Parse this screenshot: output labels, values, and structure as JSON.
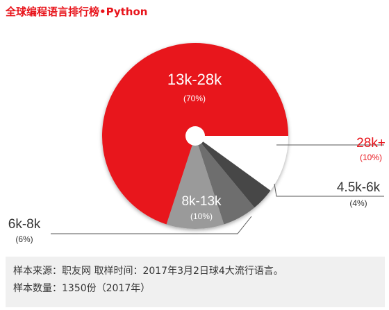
{
  "title": "全球编程语言排行榜•Python",
  "chart_data": {
    "type": "pie",
    "title": "全球编程语言排行榜•Python",
    "slices": [
      {
        "label": "28k+",
        "pct_text": "(10%)",
        "value": 10
      },
      {
        "label": "4.5k-6k",
        "pct_text": "(4%)",
        "value": 4
      },
      {
        "label": "6k-8k",
        "pct_text": "(6%)",
        "value": 6
      },
      {
        "label": "8k-13k",
        "pct_text": "(10%)",
        "value": 10
      },
      {
        "label": "13k-28k",
        "pct_text": "(70%)",
        "value": 70
      }
    ],
    "colors": [
      "#ffffff",
      "#464646",
      "#6e6e6e",
      "#9a9a9a",
      "#e8141b"
    ]
  },
  "note": {
    "line1": "样本来源：职友网  取样时间：2017年3月2日球4大流行语言。",
    "line2": "样本数量：1350份（2017年）"
  }
}
